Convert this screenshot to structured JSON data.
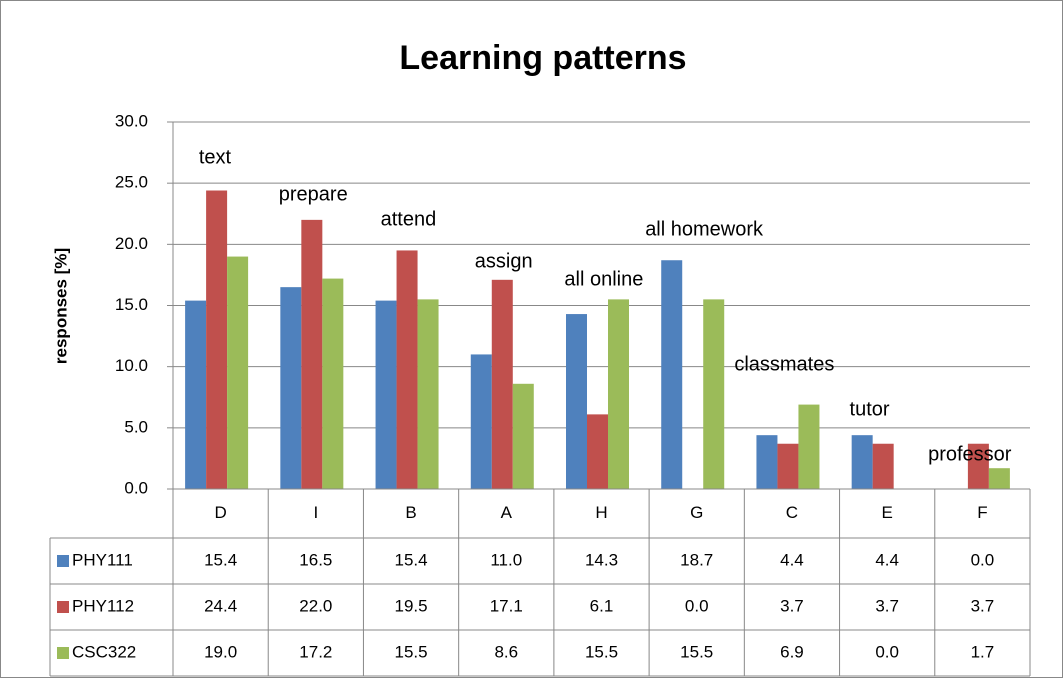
{
  "chart_data": {
    "type": "bar",
    "title": "Learning patterns",
    "y_label": "responses [%]",
    "categories": [
      "D",
      "I",
      "B",
      "A",
      "H",
      "G",
      "C",
      "E",
      "F"
    ],
    "annotations": [
      "text",
      "prepare",
      "attend",
      "assign",
      "all online",
      "all homework",
      "classmates",
      "tutor",
      "professor"
    ],
    "series": [
      {
        "name": "PHY111",
        "color": "#4f81bd",
        "values": [
          15.4,
          16.5,
          15.4,
          11.0,
          14.3,
          18.7,
          4.4,
          4.4,
          0.0
        ],
        "value_labels": [
          "15.4",
          "16.5",
          "15.4",
          "11.0",
          "14.3",
          "18.7",
          "4.4",
          "4.4",
          "0.0"
        ]
      },
      {
        "name": "PHY112",
        "color": "#c0504d",
        "values": [
          24.4,
          22.0,
          19.5,
          17.1,
          6.1,
          0.0,
          3.7,
          3.7,
          3.7
        ],
        "value_labels": [
          "24.4",
          "22.0",
          "19.5",
          "17.1",
          "6.1",
          "0.0",
          "3.7",
          "3.7",
          "3.7"
        ]
      },
      {
        "name": "CSC322",
        "color": "#9bbb59",
        "values": [
          19.0,
          17.2,
          15.5,
          8.6,
          15.5,
          15.5,
          6.9,
          0.0,
          1.7
        ],
        "value_labels": [
          "19.0",
          "17.2",
          "15.5",
          "8.6",
          "15.5",
          "15.5",
          "6.9",
          "0.0",
          "1.7"
        ]
      }
    ],
    "ylim": [
      0,
      30
    ],
    "yticks": [
      {
        "value": 0,
        "label": "0.0"
      },
      {
        "value": 5,
        "label": "5.0"
      },
      {
        "value": 10,
        "label": "10.0"
      },
      {
        "value": 15,
        "label": "15.0"
      },
      {
        "value": 20,
        "label": "20.0"
      },
      {
        "value": 25,
        "label": "25.0"
      },
      {
        "value": 30,
        "label": "30.0"
      }
    ],
    "grid": true
  }
}
